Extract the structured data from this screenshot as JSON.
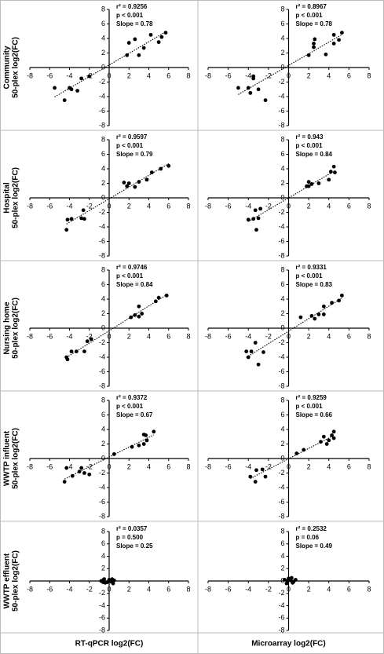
{
  "chart_data": [
    {
      "type": "scatter",
      "ylabel": [
        "Community",
        "50-plex log2(FC)"
      ],
      "annotations": [
        "r² = 0.9256",
        "p  <  0.001",
        "Slope = 0.78"
      ],
      "color": "#000000",
      "x": [
        -5.5,
        -4.5,
        -4,
        -3.8,
        -3.2,
        -2.8,
        -2,
        1.8,
        2,
        2.6,
        3,
        3.5,
        4.2,
        5,
        5.3,
        5.7
      ],
      "values": [
        -2.8,
        -4.5,
        -2.8,
        -3,
        -3.2,
        -1.5,
        -1.2,
        1.7,
        3.4,
        3.9,
        1.7,
        2.7,
        4.5,
        3.5,
        4.2,
        4.8
      ],
      "xlim": [
        -8,
        8
      ],
      "ylim": [
        -8,
        8
      ],
      "xticks": [
        -8,
        -6,
        -4,
        -2,
        0,
        2,
        4,
        6,
        8
      ],
      "yticks": [
        8,
        6,
        4,
        2,
        0,
        -2,
        -4,
        -6,
        -8
      ]
    },
    {
      "type": "scatter",
      "annotations": [
        "r² = 0.8967",
        "p  < 0.001",
        "Slope = 0.78"
      ],
      "color": "#000000",
      "x": [
        -5,
        -4,
        -3.8,
        -3.5,
        -3.5,
        -3,
        -2.3,
        2,
        2.5,
        2.6,
        2.5,
        3.7,
        4.5,
        4.5,
        5,
        5.3
      ],
      "values": [
        -2.8,
        -2.8,
        -3.5,
        -1.5,
        -1.2,
        -3,
        -4.5,
        1.7,
        3.3,
        3.9,
        2.8,
        1.8,
        4.5,
        3.3,
        3.8,
        4.8
      ],
      "xlim": [
        -8,
        8
      ],
      "ylim": [
        -8,
        8
      ],
      "xticks": [
        -8,
        -6,
        -4,
        -2,
        0,
        2,
        4,
        6,
        8
      ],
      "yticks": [
        8,
        6,
        4,
        2,
        0,
        -2,
        -4,
        -6,
        -8
      ]
    },
    {
      "type": "scatter",
      "ylabel": [
        "Hospital",
        "50-plex log2(FC)"
      ],
      "annotations": [
        "r² = 0.9597",
        "p < 0.001",
        "Slope = 0.79"
      ],
      "color": "#000000",
      "x": [
        -4.3,
        -4.2,
        -3.8,
        -2.8,
        -2.6,
        -2.5,
        1.5,
        1.8,
        2,
        2.6,
        3,
        3.8,
        4.3,
        5.2,
        6
      ],
      "values": [
        -4.4,
        -3,
        -2.9,
        -2.8,
        -1.7,
        -2.9,
        2.1,
        1.6,
        2,
        1.5,
        2.2,
        2.5,
        3.5,
        4,
        4.4
      ],
      "xlim": [
        -8,
        8
      ],
      "ylim": [
        -8,
        8
      ],
      "xticks": [
        -8,
        -6,
        -4,
        -2,
        0,
        2,
        4,
        6,
        8
      ],
      "yticks": [
        8,
        6,
        4,
        2,
        0,
        -2,
        -4,
        -6,
        -8
      ]
    },
    {
      "type": "scatter",
      "annotations": [
        "r² = 0.943",
        "p  < 0.001",
        "Slope = 0.84"
      ],
      "color": "#000000",
      "x": [
        -4,
        -3.5,
        -3.3,
        -3.2,
        -3,
        -2.8,
        1.8,
        2,
        2,
        2.3,
        3,
        4,
        4.2,
        4.5,
        4.6
      ],
      "values": [
        -3,
        -2.9,
        -1.7,
        -4.4,
        -2.8,
        -1.5,
        1.6,
        2.2,
        1.6,
        1.9,
        2,
        2.5,
        3.6,
        4.3,
        3.5
      ],
      "xlim": [
        -8,
        8
      ],
      "ylim": [
        -8,
        8
      ],
      "xticks": [
        -8,
        -6,
        -4,
        -2,
        0,
        2,
        4,
        6,
        8
      ],
      "yticks": [
        8,
        6,
        4,
        2,
        0,
        -2,
        -4,
        -6,
        -8
      ]
    },
    {
      "type": "scatter",
      "ylabel": [
        "Nursing home",
        "50-plex log2(FC)"
      ],
      "annotations": [
        "r² = 0.9746",
        "p  <  0.001",
        "Slope = 0.84"
      ],
      "color": "#000000",
      "x": [
        -4.3,
        -4.2,
        -3.8,
        -3.3,
        -2.5,
        -2.2,
        -1.8,
        2.2,
        2.6,
        3,
        3,
        3.3,
        4.7,
        5,
        5.8
      ],
      "values": [
        -4,
        -4.3,
        -3.2,
        -3.2,
        -3.2,
        -1.8,
        -1.5,
        1.5,
        1.8,
        3,
        1.6,
        2,
        3.7,
        4.2,
        4.5
      ],
      "xlim": [
        -8,
        8
      ],
      "ylim": [
        -8,
        8
      ],
      "xticks": [
        -8,
        -6,
        -4,
        -2,
        0,
        2,
        4,
        6,
        8
      ],
      "yticks": [
        8,
        6,
        4,
        2,
        0,
        -2,
        -4,
        -6,
        -8
      ]
    },
    {
      "type": "scatter",
      "annotations": [
        "r² = 0.9331",
        "p < 0.001",
        "Slope = 0.83"
      ],
      "color": "#000000",
      "x": [
        -4.2,
        -4,
        -3.7,
        -3.3,
        -3,
        -2.5,
        1.2,
        2.3,
        2.6,
        3,
        3.5,
        3.5,
        4.3,
        5,
        5.3
      ],
      "values": [
        -3.2,
        -4,
        -3.2,
        -2,
        -5,
        -3.3,
        1.5,
        1.7,
        1.3,
        1.9,
        3,
        1.9,
        3.5,
        3.8,
        4.5
      ],
      "xlim": [
        -8,
        8
      ],
      "ylim": [
        -8,
        8
      ],
      "xticks": [
        -8,
        -6,
        -4,
        -2,
        0,
        2,
        4,
        6,
        8
      ],
      "yticks": [
        8,
        6,
        4,
        2,
        0,
        -2,
        -4,
        -6,
        -8
      ]
    },
    {
      "type": "scatter",
      "ylabel": [
        "WWTP influent",
        "50-plex log2(FC)"
      ],
      "annotations": [
        "r² = 0.9372",
        "p < 0.001",
        "Slope = 0.67"
      ],
      "color": "#000000",
      "x": [
        -4.5,
        -4.3,
        -3.7,
        -3,
        -2.8,
        -2.5,
        -2,
        0.5,
        2.3,
        3,
        3.5,
        3.5,
        3.7,
        3.8,
        4.5
      ],
      "values": [
        -3.2,
        -1.3,
        -2.4,
        -1.8,
        -1.3,
        -2,
        -2.2,
        0.6,
        1.6,
        1.8,
        2,
        3.3,
        3.2,
        2.5,
        3.7
      ],
      "xlim": [
        -8,
        8
      ],
      "ylim": [
        -8,
        8
      ],
      "xticks": [
        -8,
        -6,
        -4,
        -2,
        0,
        2,
        4,
        6,
        8
      ],
      "yticks": [
        8,
        6,
        4,
        2,
        0,
        -2,
        -4,
        -6,
        -8
      ]
    },
    {
      "type": "scatter",
      "annotations": [
        "r² = 0.9259",
        "p < 0.001",
        "Slope = 0.66"
      ],
      "color": "#000000",
      "x": [
        -3.8,
        -3.3,
        -3.2,
        -2.6,
        -2.3,
        0.8,
        1.5,
        3.2,
        3.5,
        3.8,
        4,
        4.3,
        4.5,
        4.5
      ],
      "values": [
        -2.5,
        -3.2,
        -1.6,
        -1.5,
        -2.5,
        0.7,
        1.2,
        2.3,
        3,
        2,
        2.5,
        3.2,
        3.7,
        2.8
      ],
      "xlim": [
        -8,
        8
      ],
      "ylim": [
        -8,
        8
      ],
      "xticks": [
        -8,
        -6,
        -4,
        -2,
        0,
        2,
        4,
        6,
        8
      ],
      "yticks": [
        8,
        6,
        4,
        2,
        0,
        -2,
        -4,
        -6,
        -8
      ]
    },
    {
      "type": "scatter",
      "ylabel": [
        "WWTP effluent",
        "50-plex log2(FC)"
      ],
      "xlabel": "RT-qPCR log2(FC)",
      "annotations": [
        "r² = 0.0357",
        "p = 0.500",
        "Slope = 0.25"
      ],
      "color": "#000000",
      "x": [
        -0.8,
        -0.5,
        -0.4,
        -0.2,
        0,
        0.2,
        0.3,
        0.4,
        0.5,
        -0.6
      ],
      "values": [
        0,
        0.3,
        -0.3,
        -0.2,
        0.2,
        -0.1,
        0.3,
        -0.4,
        0.1,
        -0.2
      ],
      "xlim": [
        -8,
        8
      ],
      "ylim": [
        -8,
        8
      ],
      "xticks": [
        -8,
        -6,
        -4,
        -2,
        0,
        2,
        4,
        6,
        8
      ],
      "yticks": [
        8,
        6,
        4,
        2,
        0,
        -2,
        -4,
        -6,
        -8
      ]
    },
    {
      "type": "scatter",
      "xlabel": "Microarray log2(FC)",
      "annotations": [
        "r² = 0.2532",
        "p = 0.06",
        "Slope = 0.49"
      ],
      "color": "#000000",
      "x": [
        -0.4,
        -0.2,
        0,
        0.2,
        0.3,
        0.5,
        0.7,
        -0.1,
        0.4
      ],
      "values": [
        0.2,
        -0.4,
        0.4,
        0.1,
        0.5,
        -0.1,
        0.2,
        0,
        -0.3
      ],
      "xlim": [
        -8,
        8
      ],
      "ylim": [
        -8,
        8
      ],
      "xticks": [
        -8,
        -6,
        -4,
        -2,
        0,
        2,
        4,
        6,
        8
      ],
      "yticks": [
        8,
        6,
        4,
        2,
        0,
        -2,
        -4,
        -6,
        -8
      ]
    }
  ]
}
